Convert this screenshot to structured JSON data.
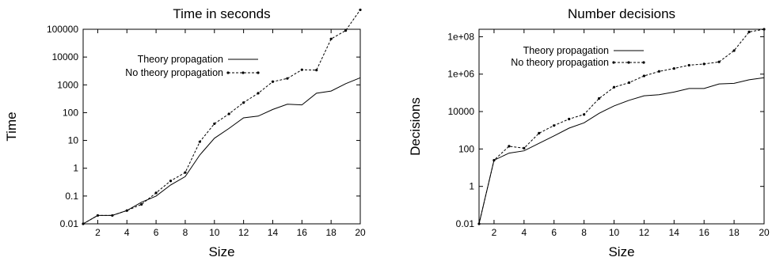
{
  "chart_data": [
    {
      "type": "line",
      "title": "Time in seconds",
      "xlabel": "Size",
      "ylabel": "Time",
      "yscale": "log",
      "xlim": [
        1,
        20
      ],
      "ylim": [
        0.01,
        100000
      ],
      "xticks": [
        2,
        4,
        6,
        8,
        10,
        12,
        14,
        16,
        18,
        20
      ],
      "xtick_labels": [
        "2",
        "4",
        "6",
        "8",
        "10",
        "12",
        "14",
        "16",
        "18",
        "20"
      ],
      "yticks": [
        0.01,
        0.1,
        1,
        10,
        100,
        1000,
        10000,
        100000
      ],
      "ytick_labels": [
        "0.01",
        "0.1",
        "1",
        "10",
        "100",
        "1000",
        "10000",
        "100000"
      ],
      "legend_position": "upper-left",
      "grid": false,
      "x": [
        1,
        2,
        3,
        4,
        5,
        6,
        7,
        8,
        9,
        10,
        11,
        12,
        13,
        14,
        15,
        16,
        17,
        18,
        19,
        20
      ],
      "series": [
        {
          "name": "Theory propagation",
          "style": "solid",
          "markers": false,
          "values": [
            0.01,
            0.02,
            0.02,
            0.03,
            0.06,
            0.1,
            0.25,
            0.5,
            3,
            12,
            27,
            65,
            75,
            130,
            200,
            190,
            500,
            600,
            1100,
            1800
          ]
        },
        {
          "name": "No theory propagation",
          "style": "dashed",
          "markers": true,
          "values": [
            0.01,
            0.02,
            0.02,
            0.03,
            0.05,
            0.13,
            0.35,
            0.7,
            9,
            40,
            90,
            230,
            500,
            1300,
            1700,
            3500,
            3400,
            45000,
            90000,
            500000
          ]
        }
      ]
    },
    {
      "type": "line",
      "title": "Number decisions",
      "xlabel": "Size",
      "ylabel": "Decisions",
      "yscale": "log",
      "xlim": [
        1,
        20
      ],
      "ylim": [
        0.01,
        250000000
      ],
      "xticks": [
        2,
        4,
        6,
        8,
        10,
        12,
        14,
        16,
        18,
        20
      ],
      "xtick_labels": [
        "2",
        "4",
        "6",
        "8",
        "10",
        "12",
        "14",
        "16",
        "18",
        "20"
      ],
      "yticks": [
        0.01,
        1,
        100,
        10000,
        1000000,
        100000000
      ],
      "ytick_labels": [
        "0.01",
        "1",
        "100",
        "10000",
        "1e+06",
        "1e+08"
      ],
      "legend_position": "upper-left",
      "grid": false,
      "x": [
        1,
        2,
        3,
        4,
        5,
        6,
        7,
        8,
        9,
        10,
        11,
        12,
        13,
        14,
        15,
        16,
        17,
        18,
        19,
        20
      ],
      "series": [
        {
          "name": "Theory propagation",
          "style": "solid",
          "markers": false,
          "values": [
            0.01,
            25,
            60,
            80,
            200,
            500,
            1300,
            2500,
            8000,
            20000,
            40000,
            70000,
            80000,
            110000,
            170000,
            170000,
            300000,
            320000,
            500000,
            650000
          ]
        },
        {
          "name": "No theory propagation",
          "style": "dashed",
          "markers": true,
          "values": [
            0.01,
            25,
            140,
            110,
            700,
            1800,
            4000,
            7000,
            50000,
            200000,
            350000,
            800000,
            1400000,
            2000000,
            3000000,
            3500000,
            4500000,
            18000000,
            180000000,
            250000000
          ]
        }
      ]
    }
  ]
}
